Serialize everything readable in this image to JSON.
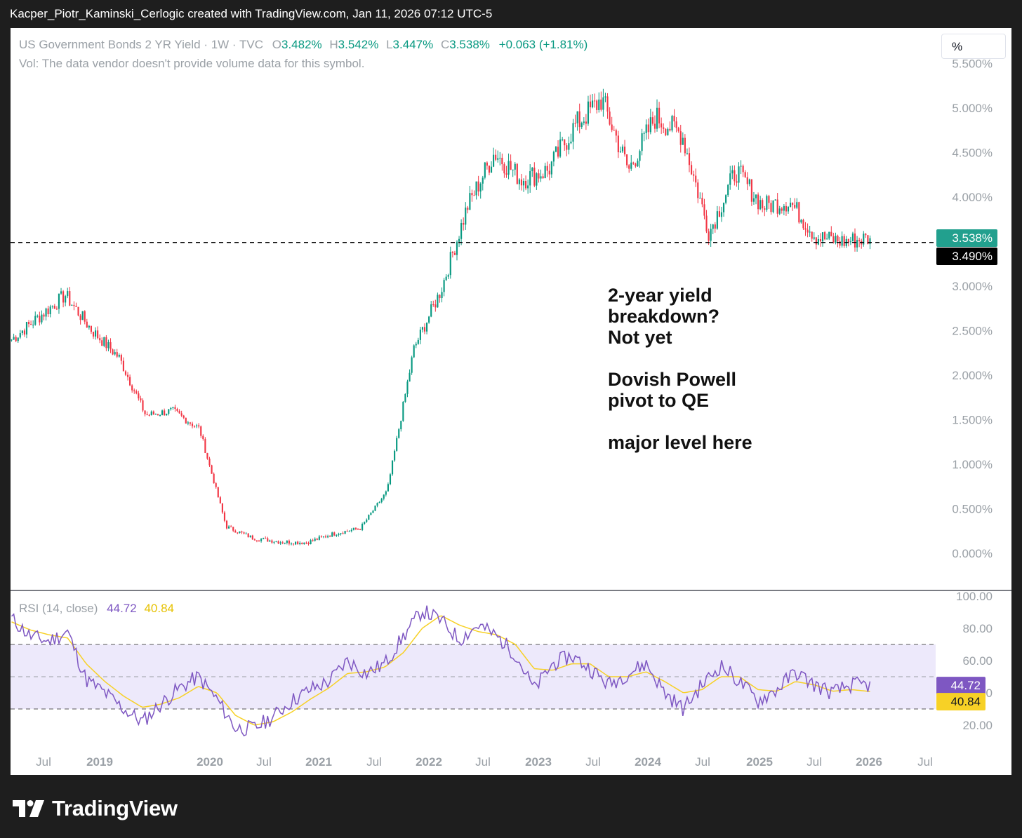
{
  "header": {
    "caption": "Kacper_Piotr_Kaminski_Cerlogic created with TradingView.com, Jan 11, 2026 07:12 UTC-5"
  },
  "legend": {
    "symbol": "US Government Bonds 2 YR Yield · 1W · TVC",
    "o_label": "O",
    "o_value": "3.482%",
    "h_label": "H",
    "h_value": "3.542%",
    "l_label": "L",
    "l_value": "3.447%",
    "c_label": "C",
    "c_value": "3.538%",
    "change": "+0.063 (+1.81%)",
    "vol_note": "Vol: The data vendor doesn't provide volume data for this symbol."
  },
  "toolbar": {
    "unit_button": "%"
  },
  "annotation": {
    "lines": [
      "2-year yield",
      "breakdown?",
      "Not yet",
      "",
      "Dovish Powell",
      "pivot to QE",
      "",
      "major level here"
    ]
  },
  "price_axis": {
    "ticks": [
      "0.000%",
      "0.500%",
      "1.000%",
      "1.500%",
      "2.000%",
      "2.500%",
      "3.000%",
      "3.500%",
      "4.000%",
      "4.500%",
      "5.000%",
      "5.500%"
    ],
    "last_price_label": "3.538%",
    "level_label": "3.490%"
  },
  "rsi_legend": {
    "name": "RSI (14, close)",
    "rsi_value": "44.72",
    "ma_value": "40.84"
  },
  "rsi_axis": {
    "ticks": [
      "20.00",
      "40.00",
      "60.00",
      "80.00",
      "100.00"
    ],
    "rsi_label": "44.72",
    "ma_label": "40.84"
  },
  "time_axis": {
    "labels": [
      "Jul",
      "2019",
      "2020",
      "Jul",
      "2021",
      "Jul",
      "2022",
      "Jul",
      "2023",
      "Jul",
      "2024",
      "Jul",
      "2025",
      "Jul",
      "2026",
      "Jul"
    ]
  },
  "footer": {
    "brand": "TradingView"
  },
  "colors": {
    "up": "#089981",
    "down": "#f23645",
    "rsi": "#7e57c2",
    "rsi_ma": "#f7d126",
    "rsi_band": "#ede9fb",
    "level_line": "#000000"
  },
  "chart_data": {
    "type": "candlestick",
    "title": "US Government Bonds 2 YR Yield",
    "interval": "1W",
    "ylim": [
      0,
      5.5
    ],
    "y_unit": "%",
    "last": {
      "open": 3.482,
      "high": 3.542,
      "low": 3.447,
      "close": 3.538
    },
    "horizontal_level": 3.49,
    "series": [
      {
        "name": "US Government Bonds 2 YR Yield",
        "x": [
          "2018-05",
          "2018-08",
          "2018-11",
          "2019-02",
          "2019-05",
          "2019-08",
          "2019-11",
          "2020-02",
          "2020-03",
          "2020-06",
          "2020-09",
          "2021-01",
          "2021-06",
          "2021-09",
          "2021-12",
          "2022-03",
          "2022-06",
          "2022-09",
          "2022-10",
          "2023-01",
          "2023-03",
          "2023-06",
          "2023-10",
          "2024-01",
          "2024-04",
          "2024-06",
          "2024-09",
          "2024-12",
          "2025-03",
          "2025-06",
          "2025-09",
          "2025-12",
          "2026-01"
        ],
        "values": [
          2.4,
          2.65,
          2.9,
          2.5,
          2.2,
          1.55,
          1.6,
          1.4,
          0.3,
          0.17,
          0.13,
          0.12,
          0.22,
          0.28,
          0.7,
          2.3,
          2.95,
          3.9,
          4.5,
          4.2,
          4.3,
          4.8,
          5.1,
          4.3,
          4.9,
          4.7,
          3.6,
          4.3,
          3.9,
          3.95,
          3.55,
          3.5,
          3.538
        ]
      }
    ]
  },
  "rsi_chart": {
    "type": "line",
    "ylim": [
      0,
      100
    ],
    "bands": [
      30,
      50,
      70
    ],
    "series": [
      {
        "name": "RSI",
        "values": [
          86,
          75,
          72,
          78,
          48,
          40,
          30,
          22,
          33,
          43,
          50,
          36,
          18,
          18,
          25,
          35,
          42,
          47,
          60,
          52,
          58,
          75,
          91,
          85,
          73,
          82,
          75,
          64,
          42,
          58,
          63,
          55,
          45,
          52,
          58,
          40,
          30,
          45,
          57,
          47,
          35,
          42,
          53,
          45,
          40,
          45,
          44.72
        ]
      },
      {
        "name": "MA",
        "values": [
          84,
          79,
          76,
          74,
          58,
          47,
          38,
          31,
          33,
          37,
          44,
          40,
          26,
          20,
          22,
          28,
          36,
          43,
          52,
          53,
          56,
          65,
          80,
          88,
          82,
          78,
          76,
          70,
          55,
          54,
          58,
          58,
          50,
          50,
          53,
          47,
          40,
          42,
          50,
          50,
          42,
          41,
          47,
          45,
          41,
          42,
          40.84
        ]
      }
    ]
  }
}
